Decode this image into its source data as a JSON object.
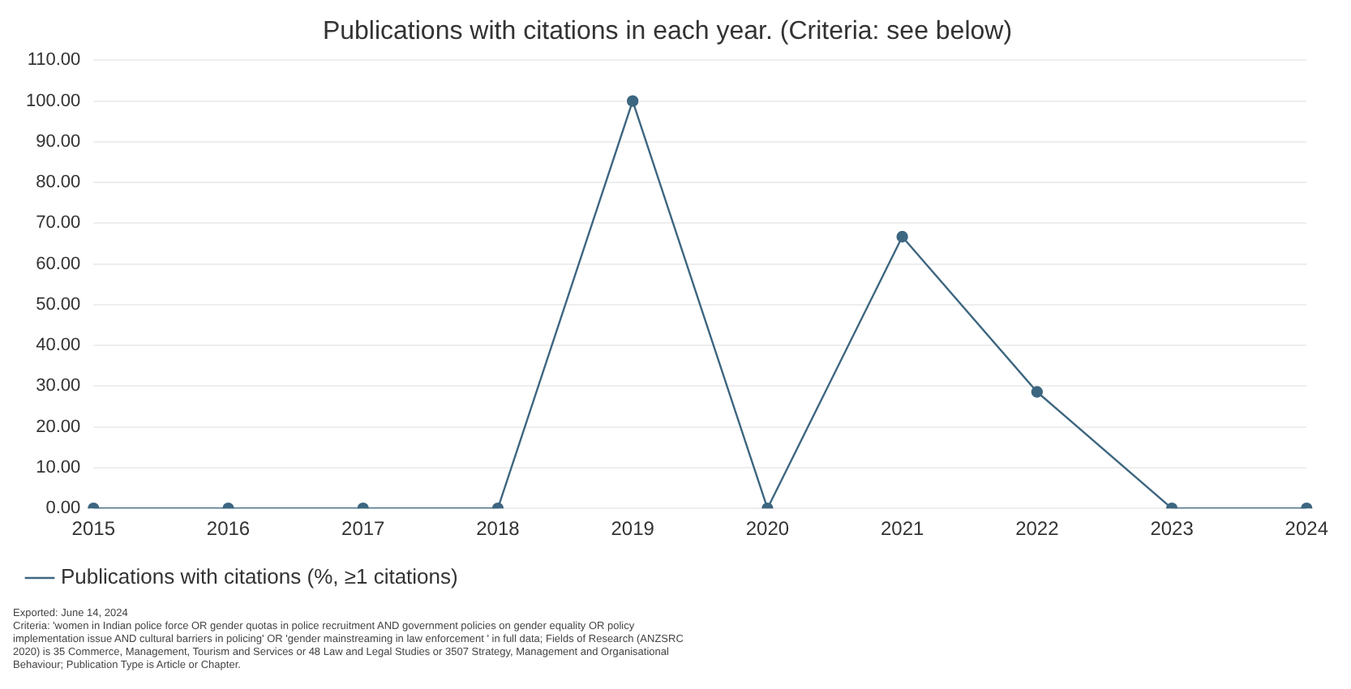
{
  "chart_data": {
    "type": "line",
    "title": "Publications with citations in each year. (Criteria: see below)",
    "categories": [
      "2015",
      "2016",
      "2017",
      "2018",
      "2019",
      "2020",
      "2021",
      "2022",
      "2023",
      "2024"
    ],
    "series": [
      {
        "name": "Publications with citations (%, ≥1 citations)",
        "color": "#3d6680",
        "values": [
          0,
          0,
          0,
          0,
          100,
          0,
          66.7,
          28.6,
          0,
          0
        ]
      }
    ],
    "ylim": [
      0,
      110
    ],
    "yticks": [
      {
        "value": 0,
        "label": "0.00"
      },
      {
        "value": 10,
        "label": "10.00"
      },
      {
        "value": 20,
        "label": "20.00"
      },
      {
        "value": 30,
        "label": "30.00"
      },
      {
        "value": 40,
        "label": "40.00"
      },
      {
        "value": 50,
        "label": "50.00"
      },
      {
        "value": 60,
        "label": "60.00"
      },
      {
        "value": 70,
        "label": "70.00"
      },
      {
        "value": 80,
        "label": "80.00"
      },
      {
        "value": 90,
        "label": "90.00"
      },
      {
        "value": 100,
        "label": "100.00"
      },
      {
        "value": 110,
        "label": "110.00"
      }
    ],
    "grid": "y",
    "legend": "bottom left",
    "marker": "circle",
    "line_style": "solid",
    "annotations": [
      "Exported: June 14, 2024",
      "Criteria: 'women in Indian police force OR gender quotas in police recruitment AND government policies on gender equality OR policy implementation issue AND cultural barriers in policing' OR 'gender mainstreaming in law enforcement ' in full data; Fields of Research (ANZSRC 2020) is 35 Commerce, Management, Tourism and Services or 48 Law and Legal Studies or 3507 Strategy, Management and Organisational Behaviour; Publication Type is Article or Chapter."
    ]
  }
}
